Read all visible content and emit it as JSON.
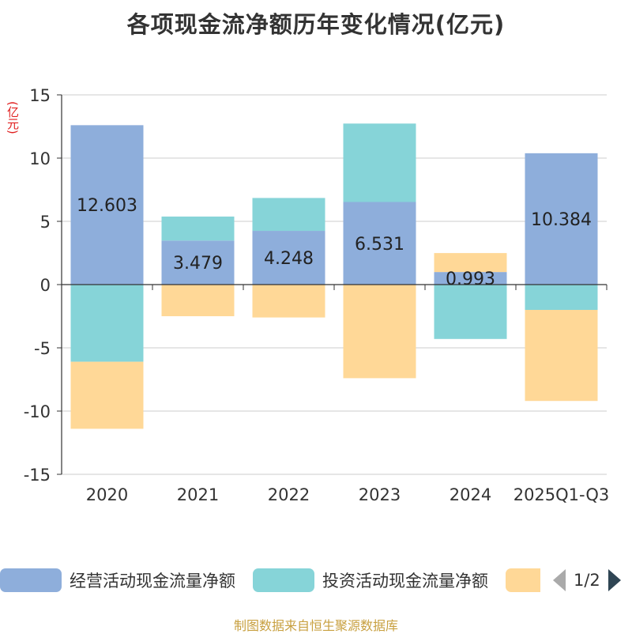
{
  "chart_data": {
    "type": "bar",
    "stacked": true,
    "title": "各项现金流净额历年变化情况(亿元)",
    "ylabel": "(亿元)",
    "ylim": [
      -15,
      15
    ],
    "yticks": [
      15,
      10,
      5,
      0,
      -5,
      -10,
      -15
    ],
    "categories": [
      "2020",
      "2021",
      "2022",
      "2023",
      "2024",
      "2025Q1-Q3"
    ],
    "series": [
      {
        "name": "经营活动现金流量净额",
        "color": "#8eaedb",
        "values": [
          12.603,
          3.479,
          4.248,
          6.531,
          0.993,
          10.384
        ],
        "labels": [
          "12.603",
          "3.479",
          "4.248",
          "6.531",
          "0.993",
          "10.384"
        ]
      },
      {
        "name": "投资活动现金流量净额",
        "color": "#86d4d8",
        "values": [
          -6.1,
          1.9,
          2.6,
          6.2,
          -4.3,
          -2.0
        ]
      },
      {
        "name": "",
        "color": "#ffd897",
        "values": [
          -5.3,
          -2.5,
          -2.6,
          -7.4,
          1.5,
          -7.2
        ]
      }
    ],
    "legend_position": "bottom"
  },
  "legend": {
    "items": [
      {
        "label": "经营活动现金流量净额",
        "color": "#8eaedb"
      },
      {
        "label": "投资活动现金流量净额",
        "color": "#86d4d8"
      },
      {
        "label": "",
        "color": "#ffd897"
      }
    ],
    "page": "1/2"
  },
  "source": "制图数据来自恒生聚源数据库"
}
